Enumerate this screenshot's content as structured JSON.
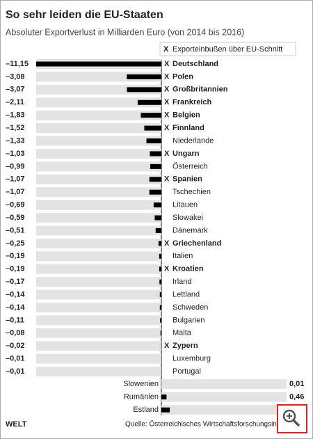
{
  "chart_data": {
    "type": "bar",
    "orientation": "horizontal",
    "title": "So sehr leiden die EU-Staaten",
    "subtitle": "Absoluter Exportverlust in Milliarden Euro (von 2014 bis 2016)",
    "legend": {
      "marker": "X",
      "label": "Exporteinbußen über EU-Schnitt"
    },
    "categories": [
      "Deutschland",
      "Polen",
      "Großbritannien",
      "Frankreich",
      "Belgien",
      "Finnland",
      "Niederlande",
      "Ungarn",
      "Österreich",
      "Spanien",
      "Tschechien",
      "Litauen",
      "Slowakei",
      "Dänemark",
      "Griechenland",
      "Italien",
      "Kroatien",
      "Irland",
      "Lettland",
      "Schweden",
      "Bulgarien",
      "Malta",
      "Zypern",
      "Luxemburg",
      "Portugal",
      "Slowenien",
      "Rumänien",
      "Estland"
    ],
    "values": [
      -11.15,
      -3.08,
      -3.07,
      -2.11,
      -1.83,
      -1.52,
      -1.33,
      -1.03,
      -0.99,
      -1.07,
      -1.07,
      -0.69,
      -0.59,
      -0.51,
      -0.25,
      -0.19,
      -0.19,
      -0.17,
      -0.14,
      -0.14,
      -0.11,
      -0.08,
      -0.02,
      -0.01,
      -0.01,
      0.01,
      0.46,
      0.75
    ],
    "value_labels": [
      "–11,15",
      "–3,08",
      "–3,07",
      "–2,11",
      "–1,83",
      "–1,52",
      "–1,33",
      "–1,03",
      "–0,99",
      "–1,07",
      "–1,07",
      "–0,69",
      "–0,59",
      "–0,51",
      "–0,25",
      "–0,19",
      "–0,19",
      "–0,17",
      "–0,14",
      "–0,14",
      "–0,11",
      "–0,08",
      "–0,02",
      "–0,01",
      "–0,01",
      "0,01",
      "0,46",
      null
    ],
    "highlighted": [
      true,
      true,
      true,
      true,
      true,
      true,
      false,
      true,
      false,
      true,
      false,
      false,
      false,
      false,
      true,
      false,
      true,
      false,
      false,
      false,
      false,
      false,
      true,
      false,
      false,
      false,
      false,
      false
    ],
    "xlim": [
      -11.15,
      11.15
    ],
    "color": "#000000",
    "background_color": "#e3e3e3",
    "marker_color": "#f0a800",
    "brand": "WELT",
    "source": "Quelle: Österreichisches Wirtschaftsforschungsinstitut"
  }
}
